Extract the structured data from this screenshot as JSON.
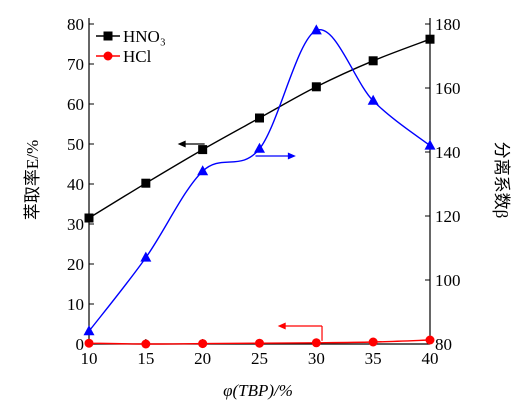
{
  "chart_data": {
    "type": "line",
    "title": "",
    "x": [
      10,
      15,
      20,
      25,
      30,
      35,
      40
    ],
    "xlabel": "φ(TBP)/%",
    "xlim": [
      10,
      40
    ],
    "xticks": [
      "10",
      "15",
      "20",
      "25",
      "30",
      "35",
      "40"
    ],
    "ylabel_left": "萃取率E/%",
    "ylim_left": [
      0,
      80
    ],
    "yticks_left": [
      "0",
      "10",
      "20",
      "30",
      "40",
      "50",
      "60",
      "70",
      "80"
    ],
    "ylabel_right": "分离系数β",
    "ylim_right": [
      80,
      180
    ],
    "yticks_right": [
      "80",
      "100",
      "120",
      "140",
      "160",
      "180"
    ],
    "legend_position": "top-left",
    "grid": false,
    "series": [
      {
        "name": "HNO₃",
        "axis": "left",
        "marker": "square",
        "color": "#000000",
        "values": [
          31.5,
          40.2,
          48.6,
          56.5,
          64.3,
          70.8,
          76.2
        ]
      },
      {
        "name": "HCl",
        "axis": "left",
        "marker": "circle",
        "color": "#ff0000",
        "values": [
          0.2,
          0.0,
          0.1,
          0.2,
          0.3,
          0.5,
          1.0
        ]
      },
      {
        "name": "",
        "axis": "right",
        "marker": "triangle",
        "color": "#0000ff",
        "values": [
          84,
          107,
          134,
          141,
          178,
          156,
          142
        ]
      }
    ],
    "annotations": [
      {
        "type": "arrow",
        "target_axis": "left",
        "series": "HNO₃",
        "color": "#000000",
        "at_x": 20,
        "at_y_left": 50
      },
      {
        "type": "arrow",
        "target_axis": "right",
        "series": "blue",
        "color": "#0000ff",
        "at_x": 25,
        "at_y_left": 47
      },
      {
        "type": "arrow",
        "target_axis": "left",
        "series": "HCl",
        "color": "#ff0000",
        "at_x": 30.5,
        "at_y_left": 4.5
      }
    ]
  }
}
